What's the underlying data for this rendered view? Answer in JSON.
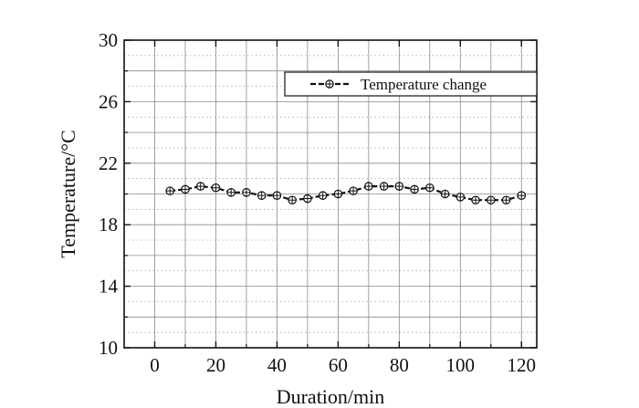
{
  "chart_data": {
    "type": "line",
    "xlabel": "Duration/min",
    "ylabel": "Temperature/°C",
    "xlim": [
      -10,
      125
    ],
    "ylim": [
      10,
      30
    ],
    "xticks": [
      0,
      20,
      40,
      60,
      80,
      100,
      120
    ],
    "xtick_labels": [
      "0",
      "20",
      "40",
      "60",
      "80",
      "100",
      "120"
    ],
    "yticks": [
      10,
      14,
      18,
      22,
      26,
      30
    ],
    "ytick_labels": [
      "10",
      "14",
      "18",
      "22",
      "26",
      "30"
    ],
    "grid": true,
    "legend_position": "top-right",
    "series": [
      {
        "name": "Temperature change",
        "color": "#111111",
        "marker": "circle-plus",
        "x": [
          5,
          10,
          15,
          20,
          25,
          30,
          35,
          40,
          45,
          50,
          55,
          60,
          65,
          70,
          75,
          80,
          85,
          90,
          95,
          100,
          105,
          110,
          115,
          120
        ],
        "y": [
          20.2,
          20.3,
          20.5,
          20.4,
          20.1,
          20.1,
          19.9,
          19.9,
          19.6,
          19.7,
          19.9,
          20.0,
          20.2,
          20.5,
          20.5,
          20.5,
          20.3,
          20.4,
          20.0,
          19.8,
          19.6,
          19.6,
          19.6,
          19.9
        ]
      }
    ]
  }
}
